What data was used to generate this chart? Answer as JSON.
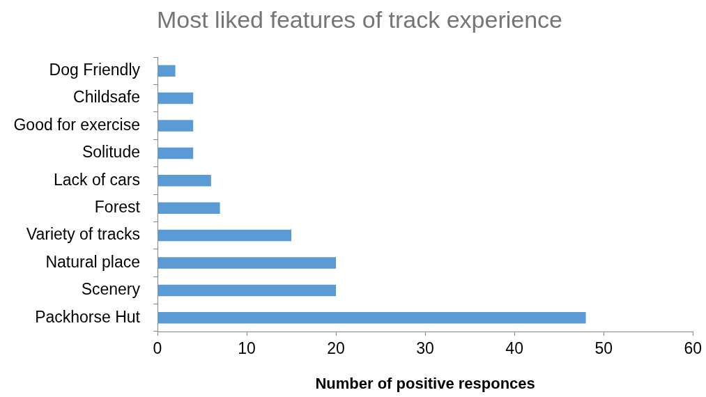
{
  "chart_data": {
    "type": "bar",
    "orientation": "horizontal",
    "title": "Most liked features of track experience",
    "xlabel": "Number of positive responces",
    "categories": [
      "Dog Friendly",
      "Childsafe",
      "Good for exercise",
      "Solitude",
      "Lack of cars",
      "Forest",
      "Variety of tracks",
      "Natural place",
      "Scenery",
      "Packhorse Hut"
    ],
    "values": [
      2,
      4,
      4,
      4,
      6,
      7,
      15,
      20,
      20,
      48
    ],
    "color": "#5b9bd5",
    "xlim": [
      0,
      60
    ],
    "xticks": [
      0,
      10,
      20,
      30,
      40,
      50,
      60
    ],
    "grid": false,
    "legend": false
  }
}
